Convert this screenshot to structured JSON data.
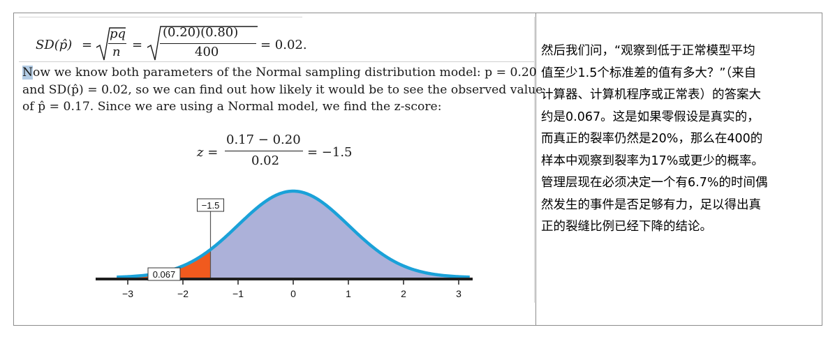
{
  "excerpt": {
    "sd_equation": {
      "lhs": "SD(p̂)",
      "eq1": "=",
      "frac1_num": "pq",
      "frac1_den": "n",
      "eq2": "=",
      "frac2_num": "(0.20)(0.80)",
      "frac2_den": "400",
      "eq3": "= 0.02."
    },
    "paragraph_lines": [
      {
        "first_char": "N",
        "rest": "ow we know both parameters of the Normal sampling distribution model: p = 0.20"
      },
      {
        "text": "and SD(p̂) = 0.02, so we can find out how likely it would be to see the observed value"
      },
      {
        "text": "of p̂ = 0.17. Since we are using a Normal model, we find the z-score:"
      }
    ],
    "z_equation": {
      "lhs": "z =",
      "num": "0.17 − 0.20",
      "den": "0.02",
      "rhs": "= −1.5"
    },
    "normal_plot": {
      "z_label": "−1.5",
      "area_label": "0.067",
      "ticks": [
        "−3",
        "−2",
        "−1",
        "0",
        "1",
        "2",
        "3"
      ],
      "tick_values": [
        -3,
        -2,
        -1,
        0,
        1,
        2,
        3
      ],
      "cutoff": -1.5,
      "tail_area": 0.067,
      "curve_color": "#1aa1d8",
      "fill_color": "#acb1d9",
      "tail_color": "#f05a1e"
    }
  },
  "answer": {
    "lines": [
      "然后我们问，“观察到低于正常模型平均",
      "值至少1.5个标准差的值有多大？”（来自",
      "计算器、计算机程序或正常表）的答案大",
      "约是0.067。这是如果零假设是真实的，",
      "而真正的裂率仍然是20%，那么在400的",
      "样本中观察到裂率为17%或更少的概率。",
      "管理层现在必须决定一个有6.7%的时间偶",
      "然发生的事件是否足够有力，足以得出真",
      "正的裂缝比例已经下降的结论。"
    ]
  }
}
